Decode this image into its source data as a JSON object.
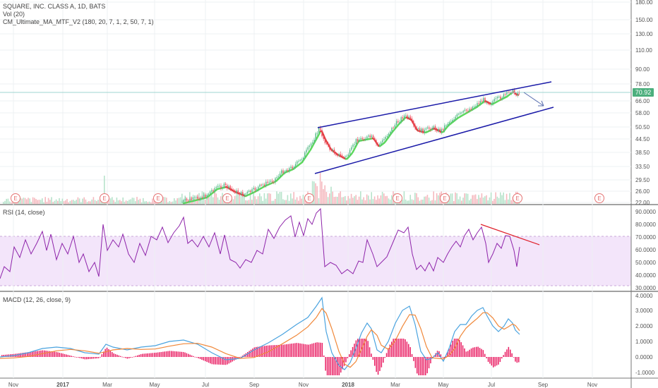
{
  "legend": {
    "title": "SQUARE, INC. CLASS A, 1D, BATS",
    "volume": "Vol (20)",
    "ma": "CM_Ultimate_MA_MTF_V2 (180, 20, 7, 1, 2, 50, 7, 1)",
    "rsi": "RSI (14, close)",
    "macd": "MACD (12, 26, close, 9)"
  },
  "colors": {
    "up": "#53b987",
    "down": "#eb4d5c",
    "ma_up": "#5cd85c",
    "ma_down": "#e03c3c",
    "channel": "#1a1aa8",
    "rsi_line": "#8e24aa",
    "rsi_band": "#f3e5fa",
    "macd_line": "#4aa3df",
    "signal_line": "#f0883a",
    "histogram": "#e91e63",
    "trend_red": "#e0202a",
    "arrow": "#5a6fb0",
    "price_line": "#9fd4d0",
    "price_tag": "#4caf7d",
    "earnings": "#e57373"
  },
  "price_axis": [
    "180.00",
    "150.00",
    "130.00",
    "110.00",
    "90.00",
    "78.00",
    "66.00",
    "58.00",
    "50.50",
    "44.50",
    "38.50",
    "33.50",
    "29.50",
    "26.00",
    "22.00"
  ],
  "current_price": "70.92",
  "rsi_axis": [
    "90.0000",
    "80.0000",
    "70.0000",
    "60.0000",
    "50.0000",
    "40.0000",
    "30.0000"
  ],
  "macd_axis": [
    "4.0000",
    "3.0000",
    "2.0000",
    "1.0000",
    "0.0000",
    "-1.0000"
  ],
  "time_axis": [
    "Nov",
    "2017",
    "Mar",
    "May",
    "Jul",
    "Sep",
    "Nov",
    "2018",
    "Mar",
    "May",
    "Jul",
    "Sep",
    "Nov"
  ],
  "earnings_marker": "E",
  "chart_data": [
    {
      "type": "candlestick",
      "title": "SQUARE, INC. CLASS A, 1D, BATS",
      "x": [
        "2017-06",
        "2017-07",
        "2017-08",
        "2017-09",
        "2017-10",
        "2017-11",
        "2017-12",
        "2018-01",
        "2018-02",
        "2018-03",
        "2018-04",
        "2018-05",
        "2018-06",
        "2018-07"
      ],
      "close": [
        23.5,
        26.5,
        27.5,
        29.0,
        37.0,
        48.0,
        36.0,
        46.0,
        45.0,
        57.0,
        47.0,
        60.0,
        66.0,
        70.92
      ],
      "channel_upper": [
        [
          "2017-11-15",
          50.5
        ],
        [
          "2018-09-01",
          78.0
        ]
      ],
      "channel_lower": [
        [
          "2017-11-15",
          33.5
        ],
        [
          "2018-09-01",
          60.0
        ]
      ],
      "last_price": 70.92
    },
    {
      "type": "line",
      "title": "RSI (14, close)",
      "ylim": [
        30,
        90
      ],
      "band": [
        30,
        70
      ],
      "x": [
        "2016-10",
        "2016-11",
        "2016-12",
        "2017-01",
        "2017-02",
        "2017-03",
        "2017-04",
        "2017-05",
        "2017-06",
        "2017-07",
        "2017-08",
        "2017-09",
        "2017-10",
        "2017-11",
        "2017-12",
        "2018-01",
        "2018-02",
        "2018-03",
        "2018-04",
        "2018-05",
        "2018-06",
        "2018-07"
      ],
      "values": [
        45,
        68,
        62,
        70,
        55,
        82,
        60,
        68,
        85,
        70,
        58,
        52,
        75,
        90,
        50,
        48,
        62,
        78,
        52,
        58,
        75,
        60
      ]
    },
    {
      "type": "line",
      "title": "MACD (12, 26, close, 9)",
      "ylim": [
        -1.5,
        4.0
      ],
      "x": [
        "2016-10",
        "2016-12",
        "2017-02",
        "2017-04",
        "2017-06",
        "2017-08",
        "2017-10",
        "2017-11",
        "2017-12",
        "2018-01",
        "2018-02",
        "2018-03",
        "2018-04",
        "2018-05",
        "2018-06",
        "2018-07"
      ],
      "series": [
        {
          "values": [
            0.0,
            0.5,
            0.7,
            0.8,
            0.4,
            0.6,
            1.8,
            3.7,
            0.0,
            -1.0,
            1.8,
            3.2,
            0.6,
            1.6,
            3.2,
            1.6
          ]
        },
        {
          "values": [
            0.0,
            0.4,
            0.6,
            0.7,
            0.5,
            0.5,
            1.4,
            3.0,
            0.8,
            -0.6,
            1.4,
            2.6,
            1.0,
            1.3,
            2.8,
            1.9
          ]
        }
      ]
    }
  ]
}
